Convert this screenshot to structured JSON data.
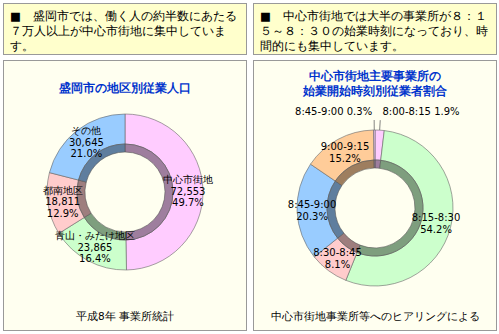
{
  "chart_data": [
    {
      "type": "donut",
      "header": "■　盛岡市では、働く人の約半数にあたる７万人以上が中心市街地に集中しています。",
      "title": [
        "盛岡市の地区別従業人口"
      ],
      "source": "平成8年 事業所統計",
      "categories": [
        "中心市街地",
        "青山・みたけ地区",
        "都南地区",
        "その他"
      ],
      "counts": [
        "72,553",
        "23,865",
        "18,811",
        "30,645"
      ],
      "values": [
        49.7,
        16.4,
        12.9,
        21.0
      ],
      "value_labels": [
        "49.7%",
        "16.4%",
        "12.9%",
        "21.0%"
      ],
      "colors": [
        "#ffccff",
        "#ccffcc",
        "#ffcccc",
        "#99ccff"
      ],
      "data_labels": true
    },
    {
      "type": "donut",
      "header": "■　中心市街地では大半の事業所が８：１５～８：３０の始業時刻になっており、時間的にも集中しています。",
      "title": [
        "中心市街地主要事業所の",
        "始業開始時刻別従業者割合"
      ],
      "source": "中心市街地事業所等へのヒアリングによる",
      "categories": [
        "8:00-8:15",
        "8:15-8:30",
        "8:30-8:45",
        "8:45-9:00",
        "9:00-9:15",
        "8:45-9:00"
      ],
      "values": [
        1.9,
        54.2,
        8.1,
        20.3,
        15.2,
        0.3
      ],
      "value_labels": [
        "1.9%",
        "54.2%",
        "8.1%",
        "20.3%",
        "15.2%",
        "0.3%"
      ],
      "colors": [
        "#ffccff",
        "#ccffcc",
        "#ffcccc",
        "#99ccff",
        "#ffcc99",
        "#ffccff"
      ],
      "data_labels": true
    }
  ]
}
